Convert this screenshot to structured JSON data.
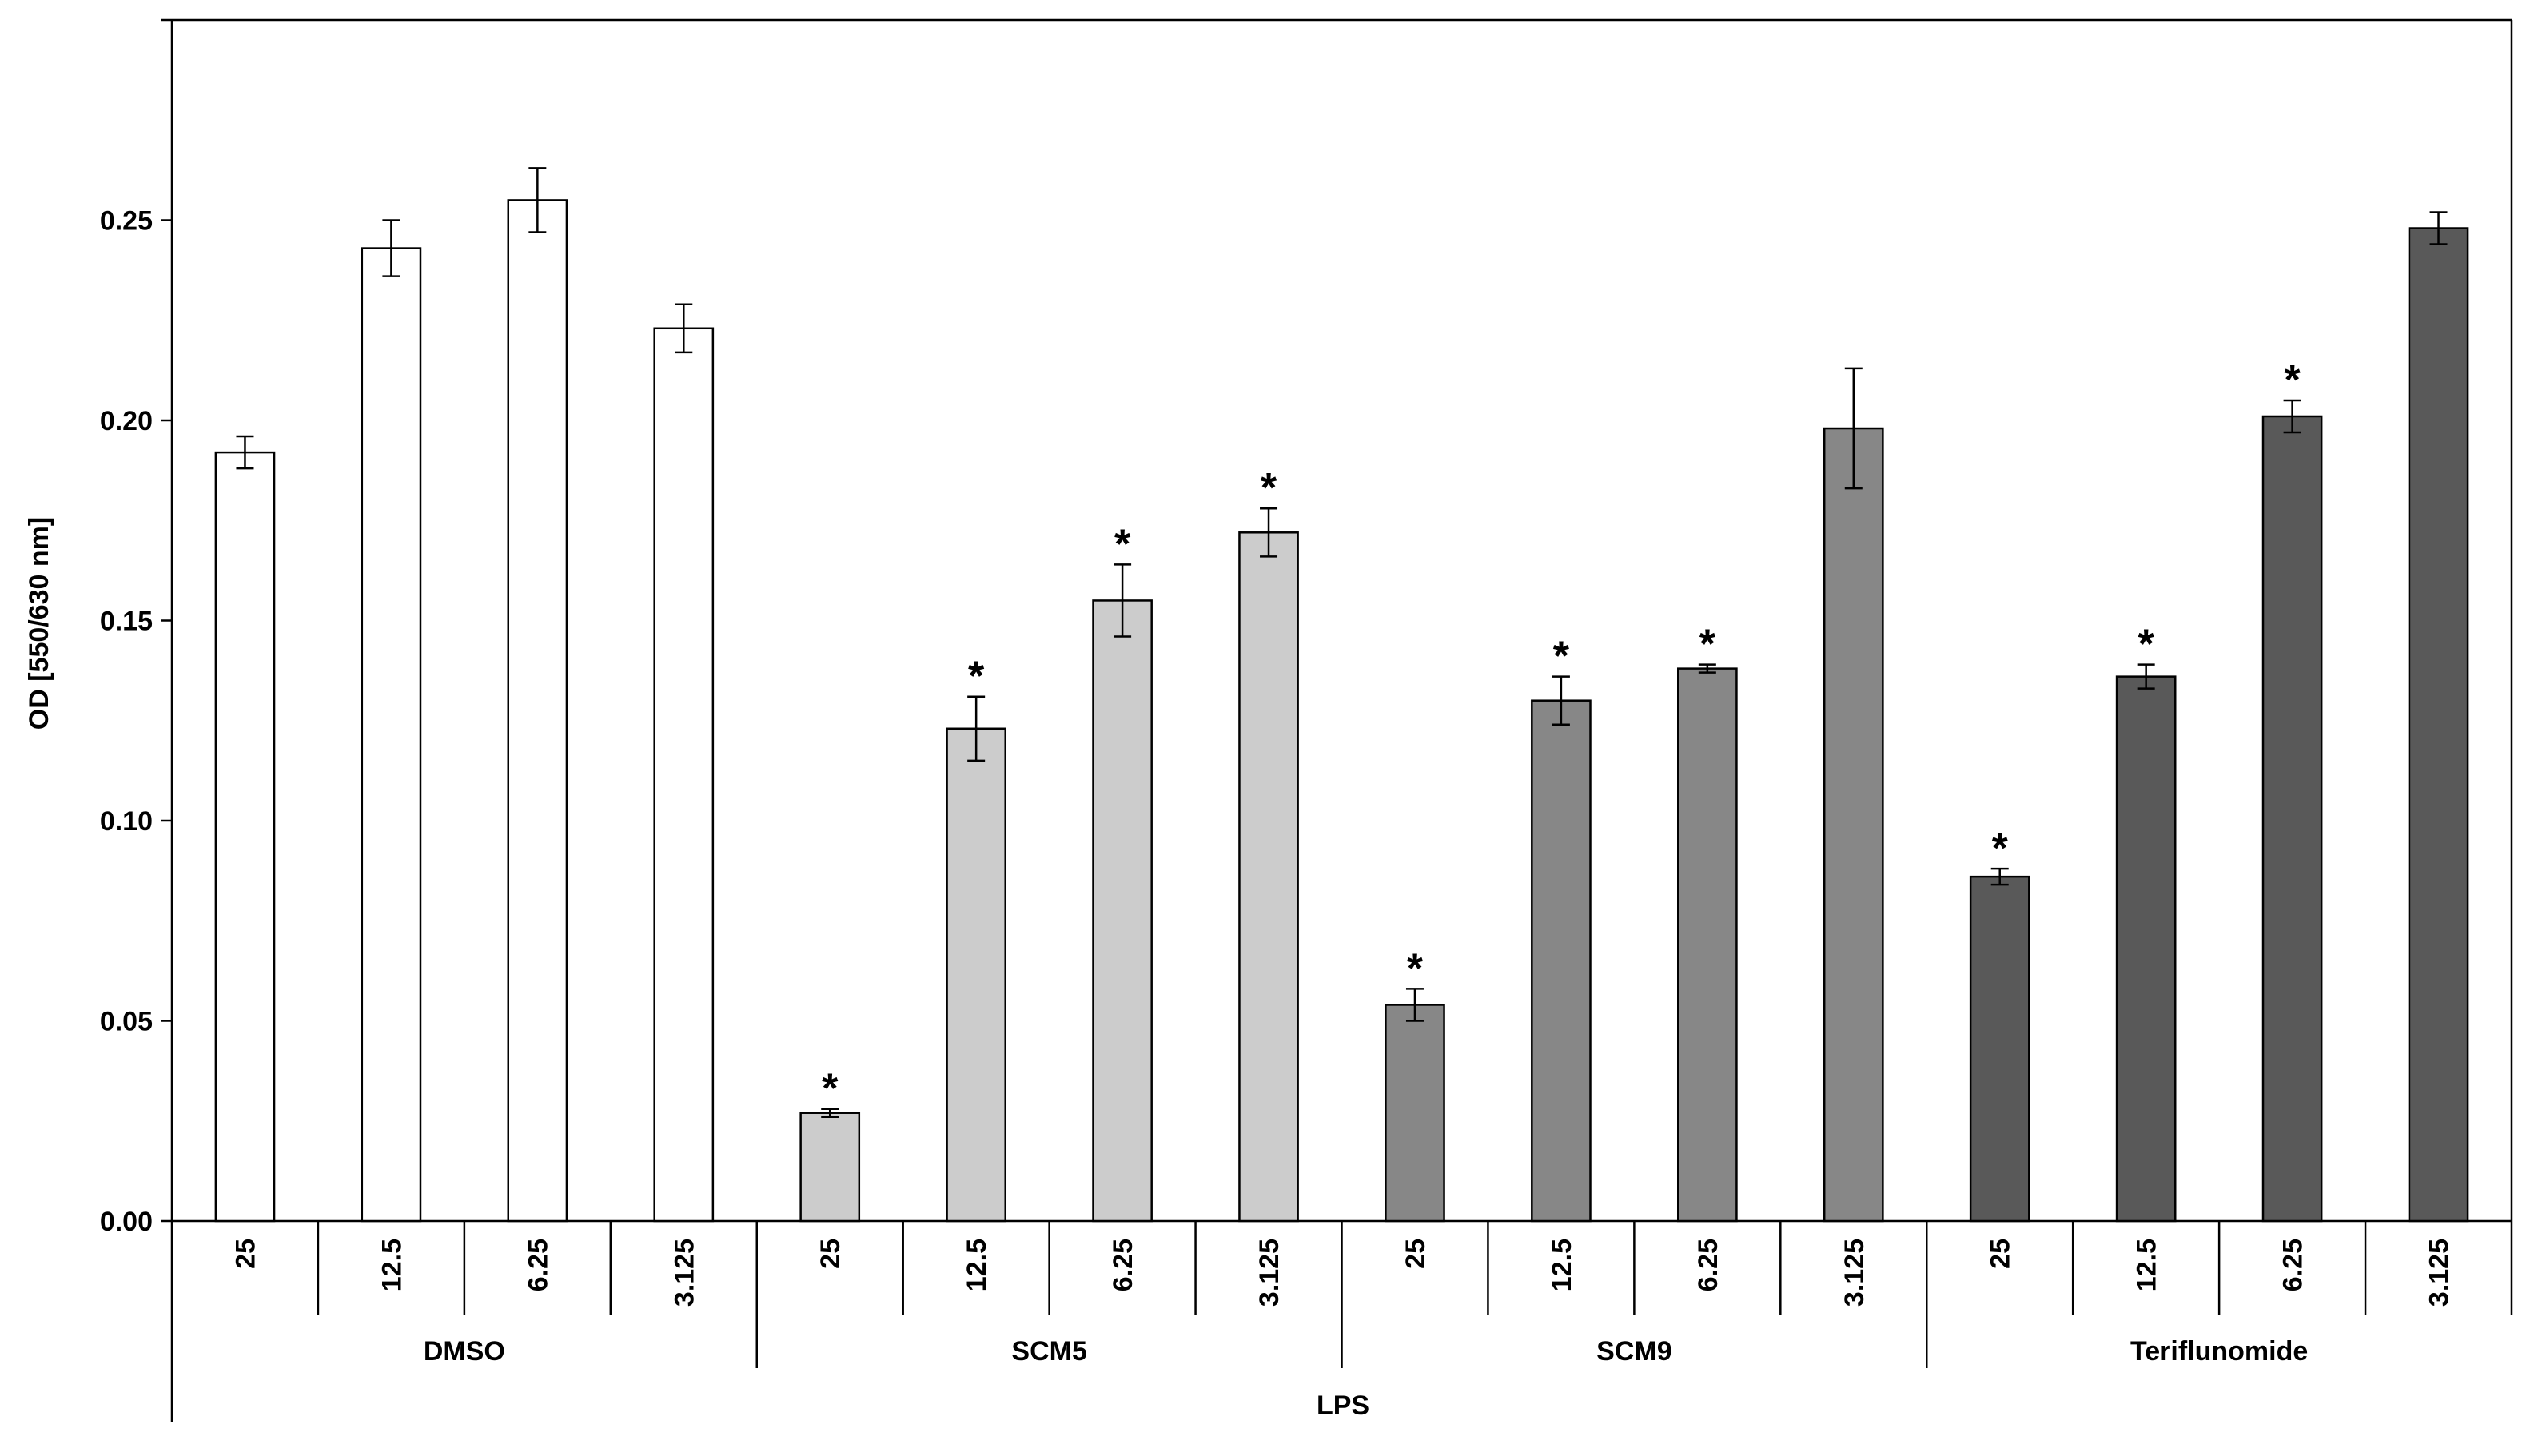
{
  "chart_data": {
    "type": "bar",
    "title": "",
    "ylabel": "OD [550/630 nm]",
    "xlabel": "LPS",
    "ylim": [
      0,
      0.3
    ],
    "yticks": [
      "0.00",
      "0.05",
      "0.10",
      "0.15",
      "0.20",
      "0.25"
    ],
    "grid": false,
    "legend": "none",
    "groups": [
      {
        "name": "DMSO",
        "color": "#ffffff",
        "categories": [
          "25",
          "12.5",
          "6.25",
          "3.125"
        ],
        "values": [
          0.192,
          0.243,
          0.255,
          0.223
        ],
        "errors": [
          0.004,
          0.007,
          0.008,
          0.006
        ],
        "significant": [
          false,
          false,
          false,
          false
        ]
      },
      {
        "name": "SCM5",
        "color": "#cccccc",
        "categories": [
          "25",
          "12.5",
          "6.25",
          "3.125"
        ],
        "values": [
          0.027,
          0.123,
          0.155,
          0.172
        ],
        "errors": [
          0.001,
          0.008,
          0.009,
          0.006
        ],
        "significant": [
          true,
          true,
          true,
          true
        ]
      },
      {
        "name": "SCM9",
        "color": "#878787",
        "categories": [
          "25",
          "12.5",
          "6.25",
          "3.125"
        ],
        "values": [
          0.054,
          0.13,
          0.138,
          0.198
        ],
        "errors": [
          0.004,
          0.006,
          0.001,
          0.015
        ],
        "significant": [
          true,
          true,
          true,
          false
        ]
      },
      {
        "name": "Teriflunomide",
        "color": "#595959",
        "categories": [
          "25",
          "12.5",
          "6.25",
          "3.125"
        ],
        "values": [
          0.086,
          0.136,
          0.201,
          0.248
        ],
        "errors": [
          0.002,
          0.003,
          0.004,
          0.004
        ],
        "significant": [
          true,
          true,
          true,
          false
        ]
      }
    ],
    "significance_marker": "*"
  }
}
